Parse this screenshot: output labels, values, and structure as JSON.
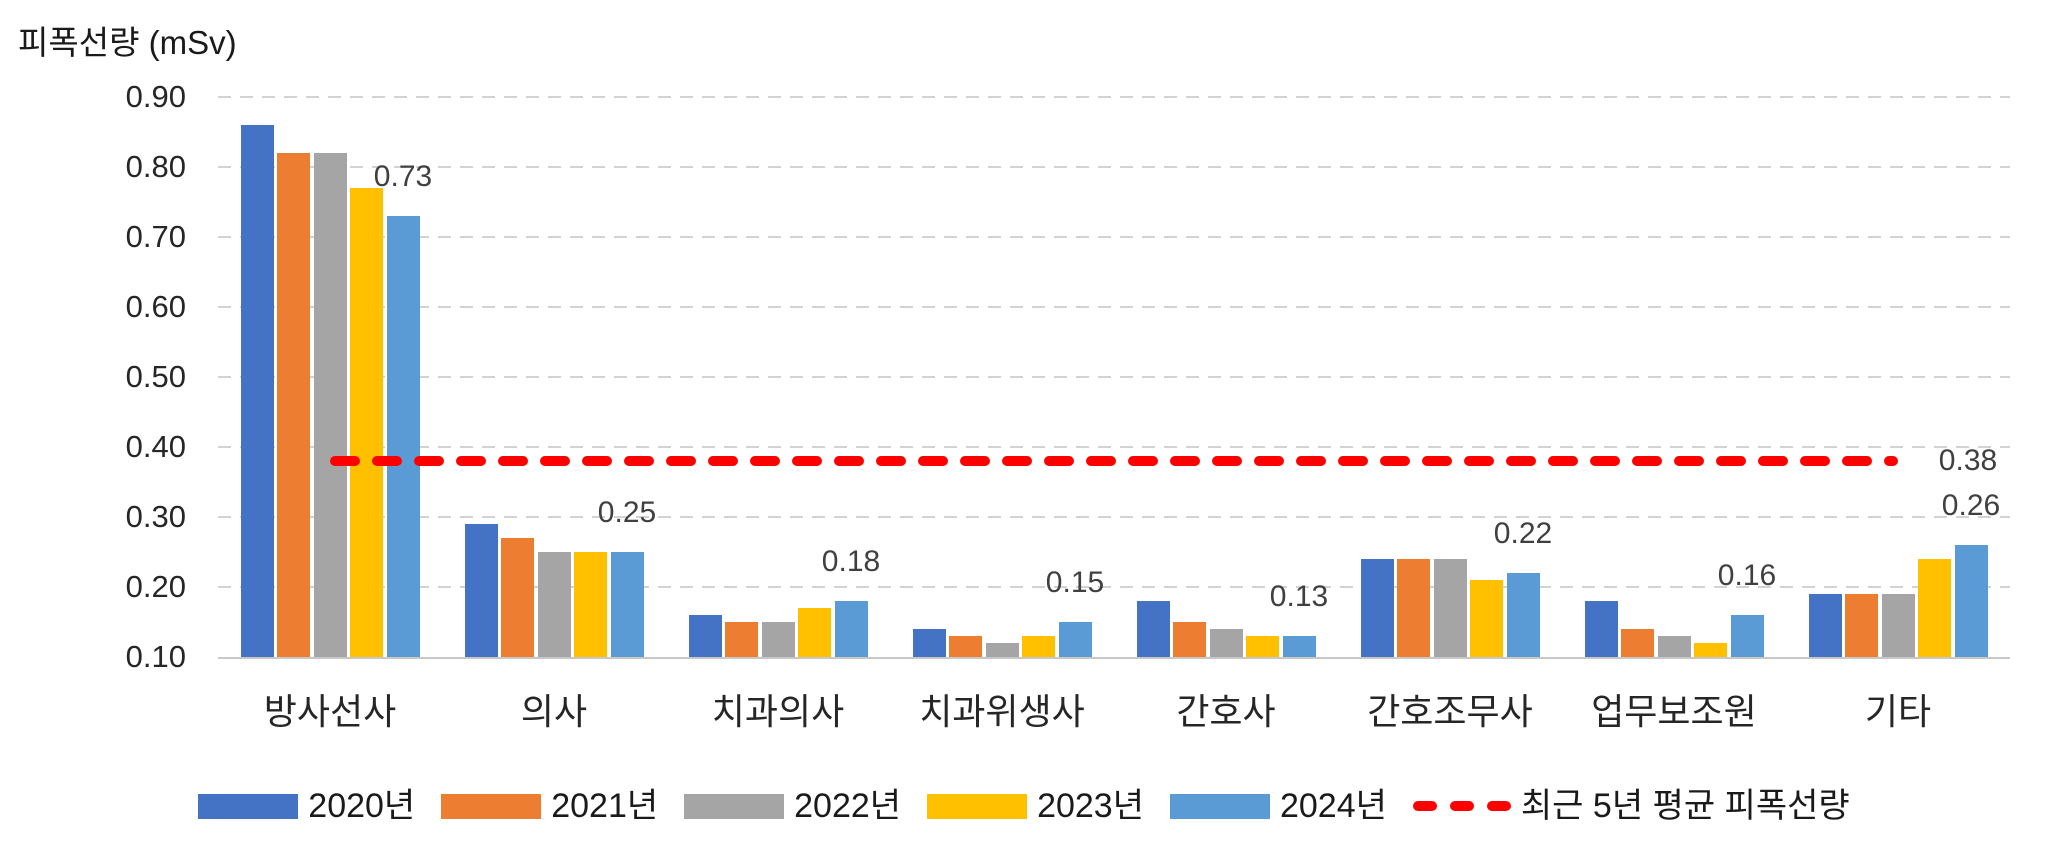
{
  "title": "피폭선량 (mSv)",
  "chart_data": {
    "type": "bar",
    "title": "피폭선량 (mSv)",
    "ylabel": "피폭선량 (mSv)",
    "categories": [
      "방사선사",
      "의사",
      "치과의사",
      "치과위생사",
      "간호사",
      "간호조무사",
      "업무보조원",
      "기타"
    ],
    "series": [
      {
        "name": "2020년",
        "color": "#4472C4",
        "values": [
          0.86,
          0.29,
          0.16,
          0.14,
          0.18,
          0.24,
          0.18,
          0.19
        ]
      },
      {
        "name": "2021년",
        "color": "#ED7D31",
        "values": [
          0.82,
          0.27,
          0.15,
          0.13,
          0.15,
          0.24,
          0.14,
          0.19
        ]
      },
      {
        "name": "2022년",
        "color": "#A5A5A5",
        "values": [
          0.82,
          0.25,
          0.15,
          0.12,
          0.14,
          0.24,
          0.13,
          0.19
        ]
      },
      {
        "name": "2023년",
        "color": "#FFC000",
        "values": [
          0.77,
          0.25,
          0.17,
          0.13,
          0.13,
          0.21,
          0.12,
          0.24
        ]
      },
      {
        "name": "2024년",
        "color": "#5B9BD5",
        "values": [
          0.73,
          0.25,
          0.18,
          0.15,
          0.13,
          0.22,
          0.16,
          0.26
        ]
      }
    ],
    "data_labels_series": "2024년",
    "data_labels": [
      "0.73",
      "0.25",
      "0.18",
      "0.15",
      "0.13",
      "0.22",
      "0.16",
      "0.26"
    ],
    "average_line": {
      "name": "최근 5년 평균 피폭선량",
      "value": 0.38,
      "label": "0.38",
      "color": "#FF0000",
      "style": "dashed"
    },
    "y_axis": {
      "min": 0.1,
      "max": 0.9,
      "step": 0.1,
      "ticks": [
        "0.90",
        "0.80",
        "0.70",
        "0.60",
        "0.50",
        "0.40",
        "0.30",
        "0.20",
        "0.10"
      ]
    },
    "grid": true,
    "gridline_color": "#d2d2d2",
    "legend_position": "bottom"
  }
}
